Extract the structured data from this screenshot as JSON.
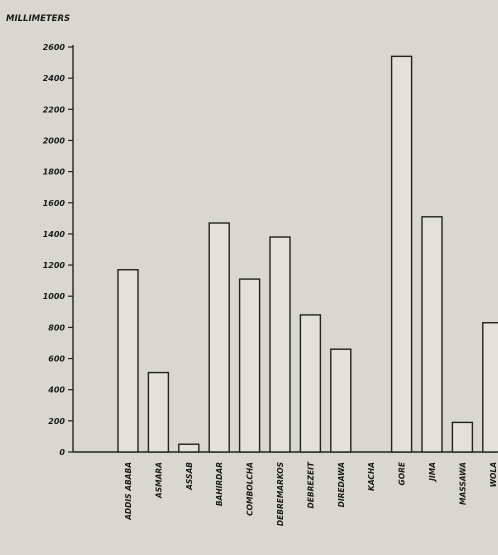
{
  "chart_data": {
    "type": "bar",
    "ylabel": "MILLIMETERS",
    "xlabel": "",
    "title": "",
    "ylim": [
      0,
      2600
    ],
    "yticks": [
      0,
      200,
      400,
      600,
      800,
      1000,
      1200,
      1400,
      1600,
      1800,
      2000,
      2200,
      2400,
      2600
    ],
    "ytick_labels": [
      "0",
      "200",
      "400",
      "600",
      "800",
      "1000",
      "1200",
      "1400",
      "1600",
      "1800",
      "2000",
      "2200",
      "2400",
      "2600"
    ],
    "categories": [
      "ADDIS ABABA",
      "ASMARA",
      "ASSAB",
      "BAHIRDAR",
      "COMBOLCHA",
      "DEBREMARKOS",
      "DEBREZEIT",
      "DIREDAWA",
      "KACHA",
      "GORE",
      "JIMA",
      "MASSAWA",
      "WOLA"
    ],
    "values": [
      1170,
      510,
      50,
      1470,
      1110,
      1380,
      880,
      660,
      0,
      2540,
      1510,
      190,
      830
    ],
    "grid": false,
    "legend": "none",
    "colors": {
      "bar_edge": "#222222",
      "bar_fill": "#e2e1da",
      "axis": "#222222",
      "background": "#d9d8d0"
    }
  }
}
